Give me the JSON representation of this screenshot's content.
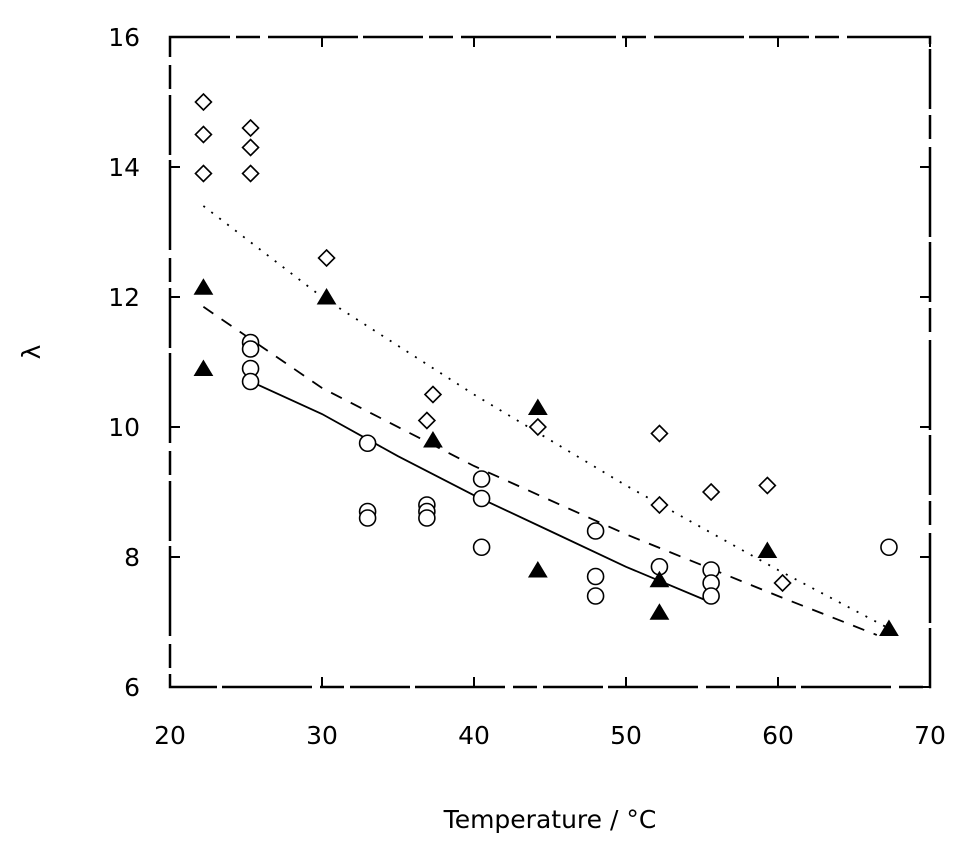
{
  "chart_data": {
    "type": "scatter",
    "title": "",
    "xlabel": "Temperature / °C",
    "ylabel": "λ",
    "xlim": [
      20,
      70
    ],
    "ylim": [
      6,
      16
    ],
    "xticks": [
      20,
      30,
      40,
      50,
      60,
      70
    ],
    "yticks": [
      6,
      8,
      10,
      12,
      14,
      16
    ],
    "grid": false,
    "series": [
      {
        "marker": "diamond",
        "points": [
          [
            22.2,
            15.0
          ],
          [
            22.2,
            14.5
          ],
          [
            22.2,
            13.9
          ],
          [
            25.3,
            14.6
          ],
          [
            25.3,
            14.3
          ],
          [
            25.3,
            13.9
          ],
          [
            30.3,
            12.6
          ],
          [
            36.9,
            10.1
          ],
          [
            37.3,
            10.5
          ],
          [
            44.2,
            10.0
          ],
          [
            52.2,
            9.9
          ],
          [
            52.2,
            8.8
          ],
          [
            55.6,
            9.0
          ],
          [
            59.3,
            9.1
          ],
          [
            60.3,
            7.6
          ]
        ]
      },
      {
        "marker": "circle",
        "points": [
          [
            25.3,
            11.3
          ],
          [
            25.3,
            11.2
          ],
          [
            25.3,
            10.9
          ],
          [
            25.3,
            10.7
          ],
          [
            33.0,
            9.75
          ],
          [
            33.0,
            8.7
          ],
          [
            33.0,
            8.6
          ],
          [
            36.9,
            8.8
          ],
          [
            36.9,
            8.7
          ],
          [
            36.9,
            8.6
          ],
          [
            40.5,
            9.2
          ],
          [
            40.5,
            8.9
          ],
          [
            40.5,
            8.15
          ],
          [
            48.0,
            8.4
          ],
          [
            48.0,
            7.7
          ],
          [
            48.0,
            7.4
          ],
          [
            52.2,
            7.85
          ],
          [
            55.6,
            7.8
          ],
          [
            55.6,
            7.6
          ],
          [
            55.6,
            7.4
          ],
          [
            67.3,
            8.15
          ]
        ]
      },
      {
        "marker": "triangle",
        "points": [
          [
            22.2,
            12.15
          ],
          [
            22.2,
            10.9
          ],
          [
            30.3,
            12.0
          ],
          [
            37.3,
            9.8
          ],
          [
            44.2,
            10.3
          ],
          [
            44.2,
            7.8
          ],
          [
            52.2,
            7.65
          ],
          [
            52.2,
            7.15
          ],
          [
            59.3,
            8.1
          ],
          [
            67.3,
            6.9
          ]
        ]
      }
    ],
    "fits": [
      {
        "style": "dotted",
        "points": [
          [
            22.2,
            13.4
          ],
          [
            30.0,
            12.0
          ],
          [
            40.0,
            10.5
          ],
          [
            50.0,
            9.1
          ],
          [
            60.0,
            7.8
          ],
          [
            67.3,
            6.9
          ]
        ]
      },
      {
        "style": "dashed",
        "points": [
          [
            22.2,
            11.85
          ],
          [
            30.0,
            10.6
          ],
          [
            40.0,
            9.4
          ],
          [
            50.0,
            8.35
          ],
          [
            60.0,
            7.4
          ],
          [
            66.5,
            6.8
          ]
        ]
      },
      {
        "style": "solid",
        "points": [
          [
            25.3,
            10.7
          ],
          [
            30.0,
            10.2
          ],
          [
            35.0,
            9.55
          ],
          [
            40.0,
            8.95
          ],
          [
            45.0,
            8.4
          ],
          [
            50.0,
            7.85
          ],
          [
            55.6,
            7.3
          ]
        ]
      }
    ]
  }
}
